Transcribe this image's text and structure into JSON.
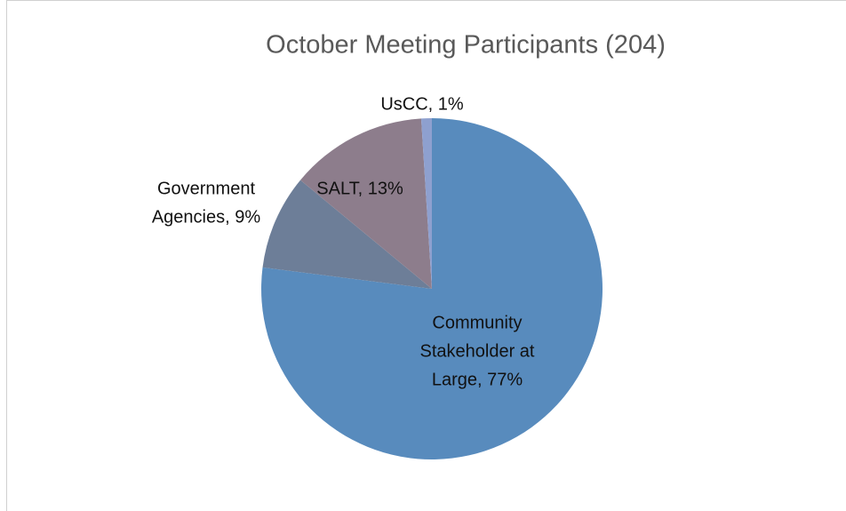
{
  "chart_data": {
    "type": "pie",
    "title": "October Meeting Participants (204)",
    "labels": [
      [
        "Community",
        "Stakeholder at",
        "Large, 77%"
      ],
      [
        "Government",
        "Agencies, 9%"
      ],
      [
        "SALT, 13%"
      ],
      [
        "UsCC, 1%"
      ]
    ],
    "values": [
      77,
      9,
      13,
      1
    ],
    "colors": [
      "#588bbd",
      "#6d7e98",
      "#8d7d8c",
      "#8ea0cf"
    ]
  }
}
